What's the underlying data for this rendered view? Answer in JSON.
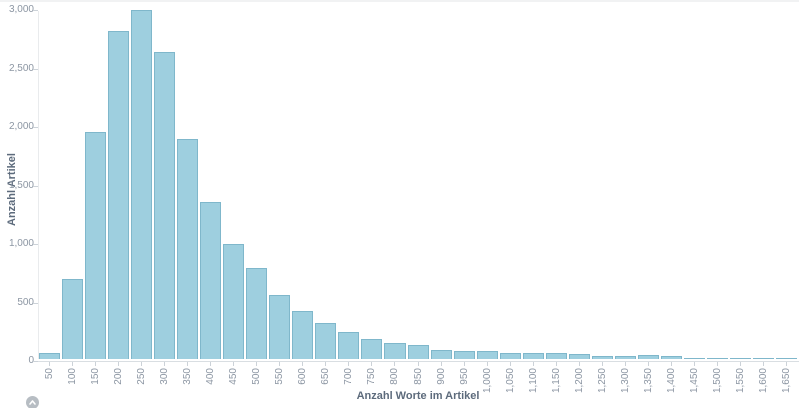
{
  "chart_data": {
    "type": "bar",
    "title": "",
    "xlabel": "Anzahl Worte im Artikel",
    "ylabel": "Anzahl Artikel",
    "categories": [
      "50",
      "100",
      "150",
      "200",
      "250",
      "300",
      "350",
      "400",
      "450",
      "500",
      "550",
      "600",
      "650",
      "700",
      "750",
      "800",
      "850",
      "900",
      "950",
      "1,000",
      "1,050",
      "1,100",
      "1,150",
      "1,200",
      "1,250",
      "1,300",
      "1,350",
      "1,400",
      "1,450",
      "1,500",
      "1,550",
      "1,600",
      "1,650"
    ],
    "values": [
      50,
      680,
      1940,
      2800,
      2980,
      2620,
      1880,
      1340,
      980,
      775,
      550,
      410,
      310,
      235,
      175,
      140,
      120,
      80,
      65,
      65,
      55,
      50,
      50,
      45,
      25,
      25,
      30,
      25,
      6,
      10,
      5,
      8,
      3
    ],
    "ylim": [
      0,
      3000
    ],
    "yticks": [
      0,
      500,
      1000,
      1500,
      2000,
      2500,
      3000
    ],
    "ytick_labels": [
      "0",
      "500",
      "1,000",
      "1,500",
      "2,000",
      "2,500",
      "3,000"
    ],
    "grid": false,
    "legend": "none",
    "bar_fill": "#9ecfdf",
    "bar_stroke": "#7fb7cb"
  },
  "page": {
    "scroll_top_icon": "chevron-up"
  }
}
